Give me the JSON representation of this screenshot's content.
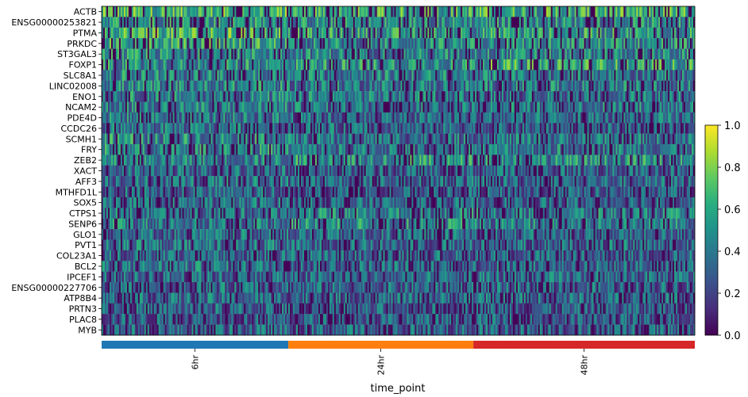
{
  "chart_data": {
    "type": "heatmap",
    "title": "",
    "xlabel": "time_point",
    "ylabel": "",
    "genes": [
      "ACTB",
      "ENSG00000253821",
      "PTMA",
      "PRKDC",
      "ST3GAL3",
      "FOXP1",
      "SLC8A1",
      "LINC02008",
      "ENO1",
      "NCAM2",
      "PDE4D",
      "CCDC26",
      "SCMH1",
      "FRY",
      "ZEB2",
      "XACT",
      "AFF3",
      "MTHFD1L",
      "SOX5",
      "CTPS1",
      "SENP6",
      "GLO1",
      "PVT1",
      "COL23A1",
      "BCL2",
      "IPCEF1",
      "ENSG00000227706",
      "ATP8B4",
      "PRTN3",
      "PLAC8",
      "MYB"
    ],
    "groups": [
      {
        "name": "6hr",
        "color": "#1f77b4",
        "n_cells": 118
      },
      {
        "name": "24hr",
        "color": "#ff7f0e",
        "n_cells": 117
      },
      {
        "name": "48hr",
        "color": "#d62728",
        "n_cells": 140
      }
    ],
    "mean_expression": [
      [
        0.62,
        0.58,
        0.58
      ],
      [
        0.5,
        0.45,
        0.45
      ],
      [
        0.62,
        0.5,
        0.5
      ],
      [
        0.55,
        0.42,
        0.45
      ],
      [
        0.45,
        0.42,
        0.42
      ],
      [
        0.45,
        0.5,
        0.55
      ],
      [
        0.42,
        0.4,
        0.38
      ],
      [
        0.42,
        0.38,
        0.38
      ],
      [
        0.4,
        0.38,
        0.35
      ],
      [
        0.4,
        0.35,
        0.38
      ],
      [
        0.38,
        0.3,
        0.3
      ],
      [
        0.35,
        0.3,
        0.25
      ],
      [
        0.45,
        0.35,
        0.35
      ],
      [
        0.45,
        0.35,
        0.38
      ],
      [
        0.4,
        0.48,
        0.45
      ],
      [
        0.3,
        0.25,
        0.28
      ],
      [
        0.35,
        0.3,
        0.3
      ],
      [
        0.3,
        0.25,
        0.25
      ],
      [
        0.32,
        0.28,
        0.3
      ],
      [
        0.35,
        0.4,
        0.38
      ],
      [
        0.38,
        0.45,
        0.4
      ],
      [
        0.32,
        0.3,
        0.28
      ],
      [
        0.35,
        0.3,
        0.3
      ],
      [
        0.3,
        0.3,
        0.28
      ],
      [
        0.35,
        0.3,
        0.3
      ],
      [
        0.3,
        0.28,
        0.3
      ],
      [
        0.3,
        0.28,
        0.28
      ],
      [
        0.3,
        0.3,
        0.3
      ],
      [
        0.28,
        0.25,
        0.25
      ],
      [
        0.25,
        0.25,
        0.25
      ],
      [
        0.28,
        0.28,
        0.28
      ]
    ],
    "colormap": "viridis",
    "colorbar": {
      "range": [
        0.0,
        1.0
      ],
      "ticks": [
        "0.0",
        "0.2",
        "0.4",
        "0.6",
        "0.8",
        "1.0"
      ]
    }
  }
}
